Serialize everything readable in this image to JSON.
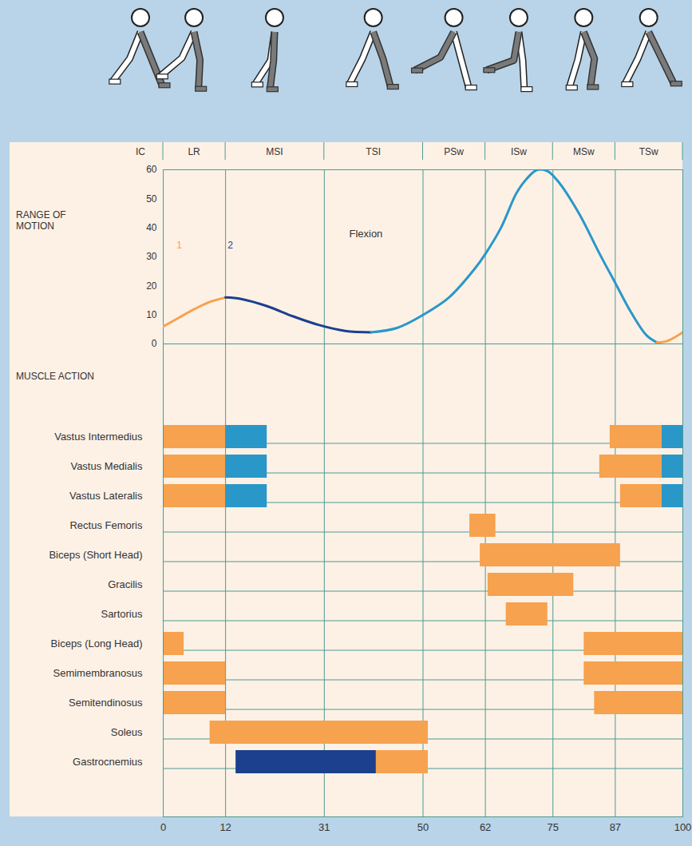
{
  "chart_data": [
    {
      "type": "line",
      "ylabel": "RANGE OF MOTION",
      "phases": [
        "IC",
        "LR",
        "MSI",
        "TSI",
        "PSw",
        "ISw",
        "MSw",
        "TSw"
      ],
      "x": [
        0,
        3,
        6,
        9,
        12,
        15,
        20,
        25,
        30,
        35,
        40,
        45,
        50,
        55,
        60,
        62,
        65,
        68,
        70,
        72,
        74,
        76,
        80,
        84,
        87,
        90,
        93,
        95,
        97,
        100
      ],
      "series": [
        {
          "name": "1",
          "color": "#f6a24e",
          "values": [
            6,
            9,
            12,
            14.5,
            16,
            null,
            null,
            null,
            null,
            null,
            null,
            null,
            null,
            null,
            null,
            null,
            null,
            null,
            null,
            null,
            null,
            null,
            null,
            null,
            null,
            null,
            null,
            null,
            null,
            null
          ]
        },
        {
          "name": "2",
          "color": "#1c3f8e",
          "values": [
            null,
            null,
            null,
            null,
            16,
            15.5,
            13,
            9.5,
            6.5,
            4.5,
            4,
            null,
            null,
            null,
            null,
            null,
            null,
            null,
            null,
            null,
            null,
            null,
            null,
            null,
            null,
            null,
            null,
            null,
            null,
            null
          ]
        },
        {
          "color": "#2a97c9",
          "values": [
            null,
            null,
            null,
            null,
            null,
            null,
            null,
            null,
            null,
            null,
            4,
            5.5,
            10,
            16,
            26,
            31,
            40,
            52,
            57,
            60,
            59.5,
            56,
            45,
            31,
            21,
            11,
            3,
            0.5,
            null,
            null
          ]
        },
        {
          "color": "#f6a24e",
          "values": [
            null,
            null,
            null,
            null,
            null,
            null,
            null,
            null,
            null,
            null,
            null,
            null,
            null,
            null,
            null,
            null,
            null,
            null,
            null,
            null,
            null,
            null,
            null,
            null,
            null,
            null,
            null,
            0.5,
            1,
            4
          ]
        }
      ],
      "annotations": [
        {
          "text": "Flexion",
          "x": 39,
          "y": 38
        }
      ],
      "xlim": [
        0,
        100
      ],
      "xticks": [
        0,
        12,
        31,
        50,
        62,
        75,
        87,
        100
      ],
      "ylim": [
        0,
        60
      ],
      "yticks": [
        0,
        10,
        20,
        30,
        40,
        50,
        60
      ],
      "grid": true,
      "tick_labels": "y"
    },
    {
      "type": "timeline",
      "title": "MUSCLE ACTION",
      "rows": [
        {
          "name": "Vastus Intermedius",
          "spans": [
            {
              "start": 0,
              "end": 12,
              "color": "#f6a24e"
            },
            {
              "start": 12,
              "end": 20,
              "color": "#2a97c9"
            },
            {
              "start": 86,
              "end": 96,
              "color": "#f6a24e"
            },
            {
              "start": 96,
              "end": 100,
              "color": "#2a97c9"
            }
          ]
        },
        {
          "name": "Vastus Medialis",
          "spans": [
            {
              "start": 0,
              "end": 12,
              "color": "#f6a24e"
            },
            {
              "start": 12,
              "end": 20,
              "color": "#2a97c9"
            },
            {
              "start": 84,
              "end": 96,
              "color": "#f6a24e"
            },
            {
              "start": 96,
              "end": 100,
              "color": "#2a97c9"
            }
          ]
        },
        {
          "name": "Vastus Lateralis",
          "spans": [
            {
              "start": 0,
              "end": 12,
              "color": "#f6a24e"
            },
            {
              "start": 12,
              "end": 20,
              "color": "#2a97c9"
            },
            {
              "start": 88,
              "end": 96,
              "color": "#f6a24e"
            },
            {
              "start": 96,
              "end": 100,
              "color": "#2a97c9"
            }
          ]
        },
        {
          "name": "Rectus Femoris",
          "spans": [
            {
              "start": 59,
              "end": 64,
              "color": "#f6a24e"
            }
          ]
        },
        {
          "name": "Biceps (Short Head)",
          "spans": [
            {
              "start": 61,
              "end": 88,
              "color": "#f6a24e"
            }
          ]
        },
        {
          "name": "Gracilis",
          "spans": [
            {
              "start": 62.5,
              "end": 79,
              "color": "#f6a24e"
            }
          ]
        },
        {
          "name": "Sartorius",
          "spans": [
            {
              "start": 66,
              "end": 74,
              "color": "#f6a24e"
            }
          ]
        },
        {
          "name": "Biceps (Long Head)",
          "spans": [
            {
              "start": 0,
              "end": 4,
              "color": "#f6a24e"
            },
            {
              "start": 81,
              "end": 100,
              "color": "#f6a24e"
            }
          ]
        },
        {
          "name": "Semimembranosus",
          "spans": [
            {
              "start": 0,
              "end": 12,
              "color": "#f6a24e"
            },
            {
              "start": 81,
              "end": 100,
              "color": "#f6a24e"
            }
          ]
        },
        {
          "name": "Semitendinosus",
          "spans": [
            {
              "start": 0,
              "end": 12,
              "color": "#f6a24e"
            },
            {
              "start": 83,
              "end": 100,
              "color": "#f6a24e"
            }
          ]
        },
        {
          "name": "Soleus",
          "spans": [
            {
              "start": 9,
              "end": 51,
              "color": "#f6a24e"
            }
          ]
        },
        {
          "name": "Gastrocnemius",
          "spans": [
            {
              "start": 14,
              "end": 41,
              "color": "#1c3f8e"
            },
            {
              "start": 41,
              "end": 51,
              "color": "#f6a24e"
            }
          ]
        }
      ],
      "xlim": [
        0,
        100
      ],
      "xticks": [
        0,
        12,
        31,
        50,
        62,
        75,
        87,
        100
      ],
      "grid": true,
      "tick_labels": "x"
    }
  ]
}
